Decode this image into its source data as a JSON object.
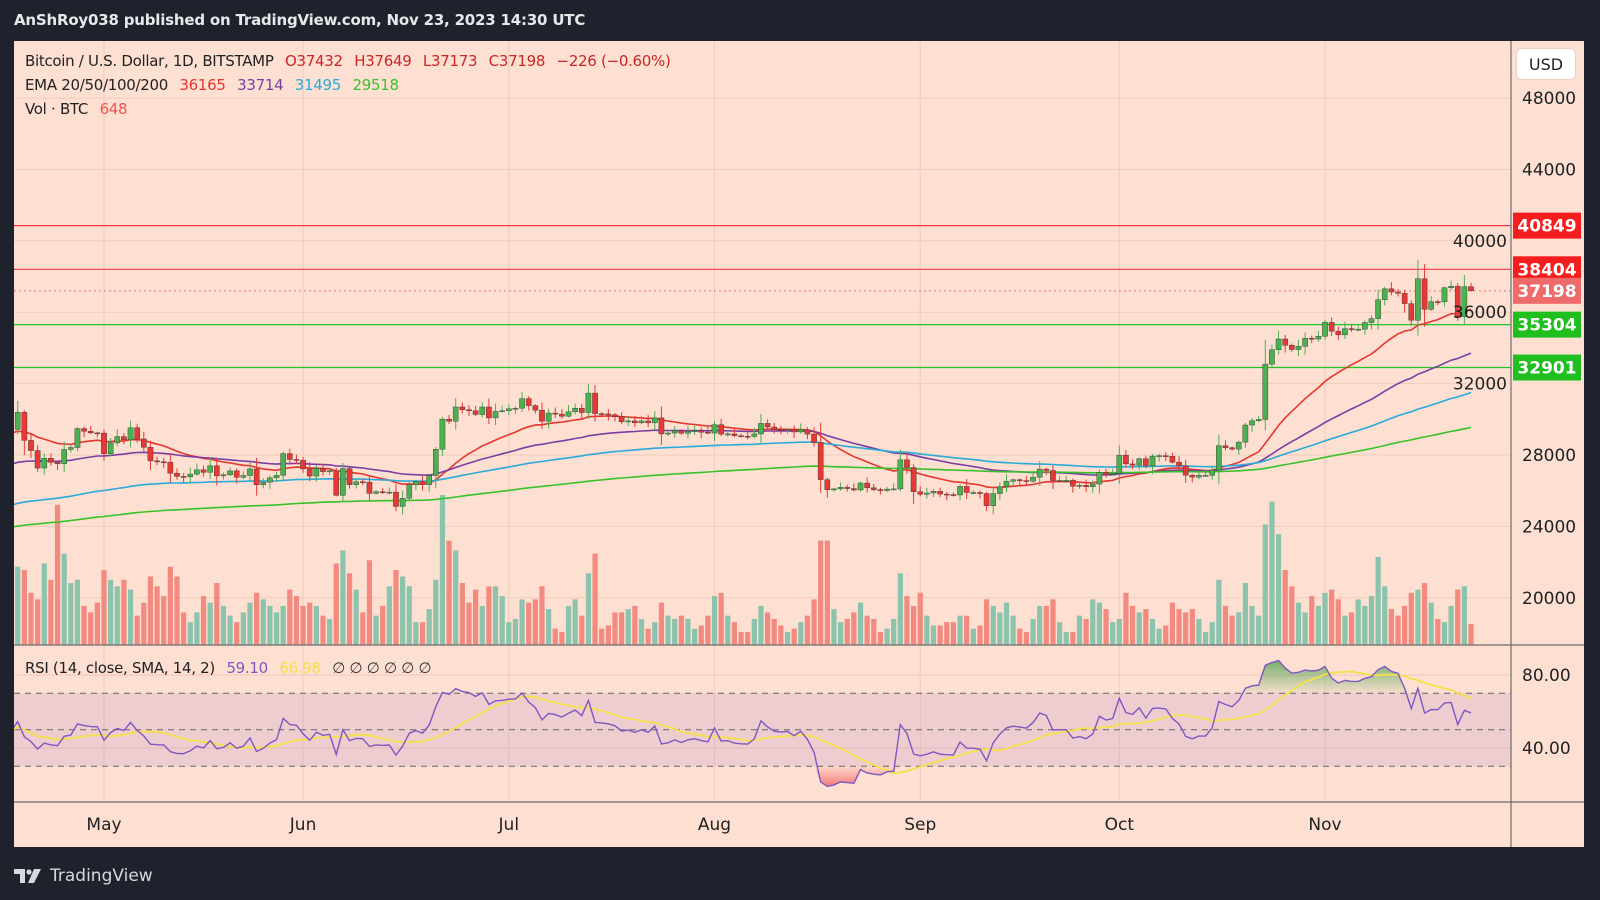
{
  "header": {
    "published": "AnShRoy038 published on TradingView.com, Nov 23, 2023 14:30 UTC"
  },
  "footer": {
    "brand": "TradingView"
  },
  "currency_button": "USD",
  "legend": {
    "symbol": "Bitcoin / U.S. Dollar, 1D, BITSTAMP",
    "open": "O37432",
    "high": "H37649",
    "low": "L37173",
    "close": "C37198",
    "change": "−226 (−0.60%)",
    "ema_label": "EMA 20/50/100/200",
    "ema_values": [
      "36165",
      "33714",
      "31495",
      "29518"
    ],
    "vol_label": "Vol · BTC",
    "vol_value": "648",
    "rsi_label": "RSI (14, close, SMA, 14, 2)",
    "rsi_value": "59.10",
    "rsi_sma_value": "66.98",
    "rsi_extra": "∅ ∅ ∅ ∅ ∅ ∅"
  },
  "colors": {
    "background": "#fde0d2",
    "bull": "#4caf50",
    "bear": "#e53935",
    "vol_bull": "#8cc3ad",
    "vol_bear": "#f28a80",
    "ema20": "#e5372f",
    "ema50": "#7a3ea3",
    "ema100": "#2aaad8",
    "ema200": "#38c22a",
    "rsi": "#7e57c2",
    "rsi_sma": "#f5e04a",
    "resistance": "#f23645",
    "support": "#22c322"
  },
  "chart_data": {
    "type": "candlestick",
    "symbol": "BTCUSD",
    "exchange": "BITSTAMP",
    "interval": "1D",
    "dates_from": "2023-04-17",
    "dates_to": "2023-11-23",
    "y_ticks": [
      48000,
      44000,
      40000,
      36000,
      32000,
      28000,
      24000,
      20000
    ],
    "y_tick_labels": [
      "48000",
      "44000",
      "40000",
      "36000",
      "32000",
      "28000",
      "24000",
      "20000"
    ],
    "ylim": [
      16300,
      50200
    ],
    "x_tick_labels": [
      "May",
      "Jun",
      "Jul",
      "Aug",
      "Sep",
      "Oct",
      "Nov"
    ],
    "grid": true,
    "last_candle": {
      "open": 37432,
      "high": 37649,
      "low": 37173,
      "close": 37198
    },
    "closes": [
      29430,
      30390,
      28820,
      28250,
      27270,
      27820,
      27590,
      27510,
      28310,
      28420,
      29480,
      29330,
      29240,
      29230,
      28070,
      28680,
      29030,
      28850,
      29530,
      28900,
      28430,
      27670,
      27620,
      27600,
      26980,
      26800,
      26780,
      26930,
      27170,
      27030,
      27400,
      26830,
      26890,
      27110,
      26750,
      26850,
      27220,
      26330,
      26480,
      26720,
      26870,
      28080,
      27750,
      27700,
      27220,
      26820,
      27250,
      27070,
      27120,
      25740,
      27240,
      26340,
      26500,
      26480,
      25850,
      25940,
      25900,
      25920,
      25120,
      25580,
      26340,
      26510,
      26340,
      26850,
      28320,
      30010,
      29890,
      30690,
      30540,
      30480,
      30270,
      30690,
      30080,
      30440,
      30480,
      30590,
      30620,
      31160,
      30770,
      30510,
      29890,
      30350,
      30290,
      30170,
      30420,
      30620,
      30380,
      31470,
      30320,
      30300,
      30250,
      30140,
      29860,
      29910,
      29800,
      29910,
      29800,
      30080,
      29180,
      29230,
      29350,
      29220,
      29320,
      29360,
      29280,
      29230,
      29700,
      29170,
      29180,
      29080,
      29050,
      29040,
      29180,
      29770,
      29570,
      29430,
      29400,
      29420,
      29290,
      29410,
      29170,
      28700,
      26620,
      26050,
      26100,
      26190,
      26120,
      26040,
      26430,
      26160,
      26060,
      26010,
      26090,
      26100,
      27730,
      27300,
      25940,
      25800,
      25870,
      25970,
      25810,
      25780,
      25760,
      26240,
      25900,
      25900,
      25840,
      25160,
      25840,
      26230,
      26530,
      26610,
      26570,
      26530,
      26760,
      27210,
      27130,
      26570,
      26580,
      26580,
      26250,
      26300,
      26220,
      26370,
      27030,
      26910,
      26970,
      27990,
      27500,
      27430,
      27790,
      27410,
      27940,
      27960,
      27930,
      27600,
      27390,
      26870,
      26760,
      26860,
      26860,
      27160,
      28520,
      28410,
      28330,
      28720,
      29680,
      29920,
      29990,
      33090,
      33900,
      34500,
      34150,
      33910,
      34090,
      34540,
      34500,
      34650,
      35430,
      34940,
      34730,
      35080,
      35040,
      35050,
      35420,
      35640,
      36700,
      37310,
      37130,
      37060,
      36480,
      35550,
      37880,
      36160,
      36590,
      36580,
      37370,
      37450,
      35750,
      37432,
      37198
    ],
    "volumes": [
      2800,
      2400,
      2300,
      1600,
      1400,
      2500,
      2000,
      4300,
      2800,
      1900,
      2000,
      1200,
      1000,
      1300,
      2300,
      2000,
      1800,
      2000,
      1700,
      900,
      1300,
      2100,
      1800,
      1500,
      2400,
      2100,
      1000,
      700,
      1000,
      1500,
      1300,
      1900,
      1200,
      900,
      700,
      1000,
      1300,
      1600,
      1400,
      1200,
      1000,
      1200,
      1700,
      1500,
      1200,
      1300,
      1200,
      900,
      800,
      2500,
      2900,
      2200,
      1700,
      1000,
      2600,
      900,
      1200,
      1800,
      2300,
      2100,
      1800,
      700,
      700,
      1100,
      2000,
      4600,
      3200,
      2900,
      1900,
      1300,
      1700,
      1200,
      1800,
      1800,
      1500,
      700,
      800,
      1400,
      1300,
      1400,
      1800,
      1100,
      500,
      400,
      1200,
      1400,
      900,
      2200,
      2800,
      500,
      600,
      1000,
      1000,
      1100,
      1200,
      800,
      500,
      700,
      1300,
      900,
      800,
      900,
      800,
      500,
      600,
      900,
      1500,
      1600,
      900,
      700,
      400,
      400,
      800,
      1200,
      1000,
      800,
      600,
      400,
      500,
      700,
      900,
      1400,
      3200,
      3200,
      1100,
      700,
      800,
      1000,
      1300,
      900,
      800,
      400,
      500,
      800,
      2200,
      1500,
      1200,
      1600,
      900,
      600,
      600,
      700,
      700,
      900,
      900,
      500,
      600,
      1400,
      1200,
      1000,
      1300,
      900,
      500,
      400,
      800,
      1200,
      1200,
      1400,
      700,
      400,
      400,
      900,
      800,
      1400,
      1300,
      1100,
      700,
      800,
      1600,
      1200,
      1000,
      1100,
      800,
      500,
      600,
      1300,
      1100,
      1000,
      1100,
      800,
      400,
      700,
      2000,
      1200,
      900,
      1000,
      1900,
      1200,
      900,
      3700,
      4400,
      3400,
      2300,
      1800,
      1300,
      1000,
      1500,
      1200,
      1600,
      1700,
      1400,
      900,
      1000,
      1400,
      1200,
      1500,
      2700,
      1800,
      1100,
      900,
      1200,
      1600,
      1700,
      1900,
      1300,
      800,
      700,
      1200,
      1700,
      1800,
      648
    ],
    "horizontal_levels": [
      {
        "value": 40849,
        "label": "40849",
        "kind": "resistance"
      },
      {
        "value": 38404,
        "label": "38404",
        "kind": "resistance"
      },
      {
        "value": 35304,
        "label": "35304",
        "kind": "support"
      },
      {
        "value": 32901,
        "label": "32901",
        "kind": "support"
      }
    ],
    "current_price": {
      "value": 37198,
      "label": "37198"
    },
    "ema_periods": [
      20,
      50,
      100,
      200
    ],
    "rsi": {
      "period": 14,
      "sma_period": 14,
      "y_ticks": [
        80,
        40
      ],
      "y_tick_labels": [
        "80.00",
        "40.00"
      ],
      "bands": [
        70,
        50,
        30
      ],
      "ylim": [
        20,
        95
      ]
    }
  }
}
